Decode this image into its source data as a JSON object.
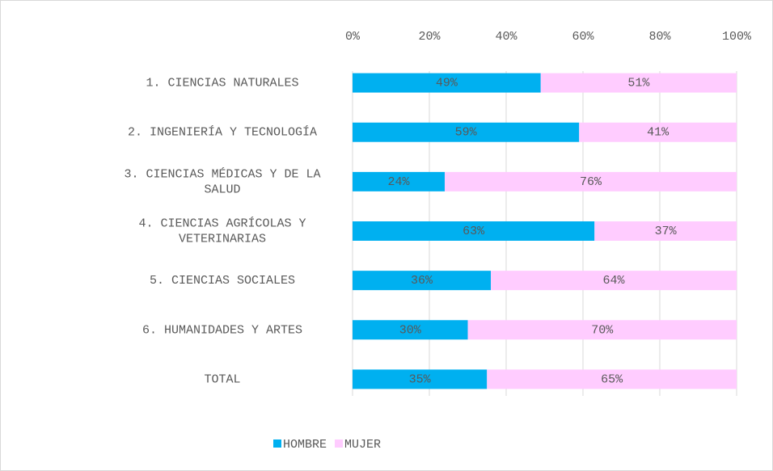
{
  "chart_data": {
    "type": "stacked_bar_horizontal",
    "categories": [
      "1. CIENCIAS NATURALES",
      "2. INGENIERÍA Y TECNOLOGÍA",
      "3. CIENCIAS MÉDICAS Y DE LA SALUD",
      "4. CIENCIAS AGRÍCOLAS Y VETERINARIAS",
      "5. CIENCIAS SOCIALES",
      "6. HUMANIDADES Y ARTES",
      "TOTAL"
    ],
    "series": [
      {
        "name": "HOMBRE",
        "color": "#00b0f0",
        "values": [
          49,
          59,
          24,
          63,
          36,
          30,
          35
        ],
        "value_labels": [
          "49%",
          "59%",
          "24%",
          "63%",
          "36%",
          "30%",
          "35%"
        ]
      },
      {
        "name": "MUJER",
        "color": "#ffccff",
        "values": [
          51,
          41,
          76,
          37,
          64,
          70,
          65
        ],
        "value_labels": [
          "51%",
          "41%",
          "76%",
          "37%",
          "64%",
          "70%",
          "65%"
        ]
      }
    ],
    "xlim": [
      0,
      100
    ],
    "xticks": [
      {
        "value": 0,
        "label": "0%"
      },
      {
        "value": 20,
        "label": "20%"
      },
      {
        "value": 40,
        "label": "40%"
      },
      {
        "value": 60,
        "label": "60%"
      },
      {
        "value": 80,
        "label": "80%"
      },
      {
        "value": 100,
        "label": "100%"
      }
    ],
    "grid": true,
    "legend": "bottom"
  }
}
